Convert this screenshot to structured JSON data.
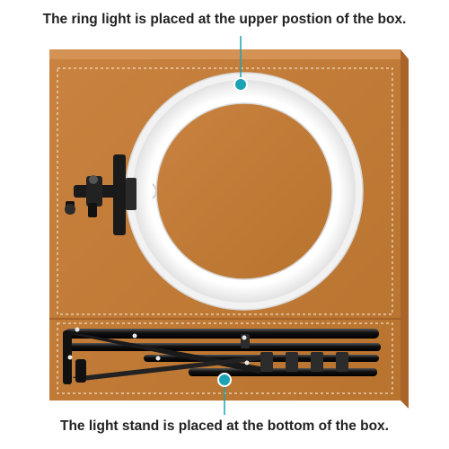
{
  "captions": {
    "top": "The ring light is placed at the upper postion of the box.",
    "bottom": "The light stand is placed at the bottom of the box."
  },
  "colors": {
    "box_brown": "#c07a3a",
    "box_side": "#a8642b",
    "box_top": "#d08a48",
    "stitch": "#f3dcc2",
    "ring": "#f4f4f4",
    "callout": "#19a3b4",
    "metal": "#1c1c1c"
  }
}
